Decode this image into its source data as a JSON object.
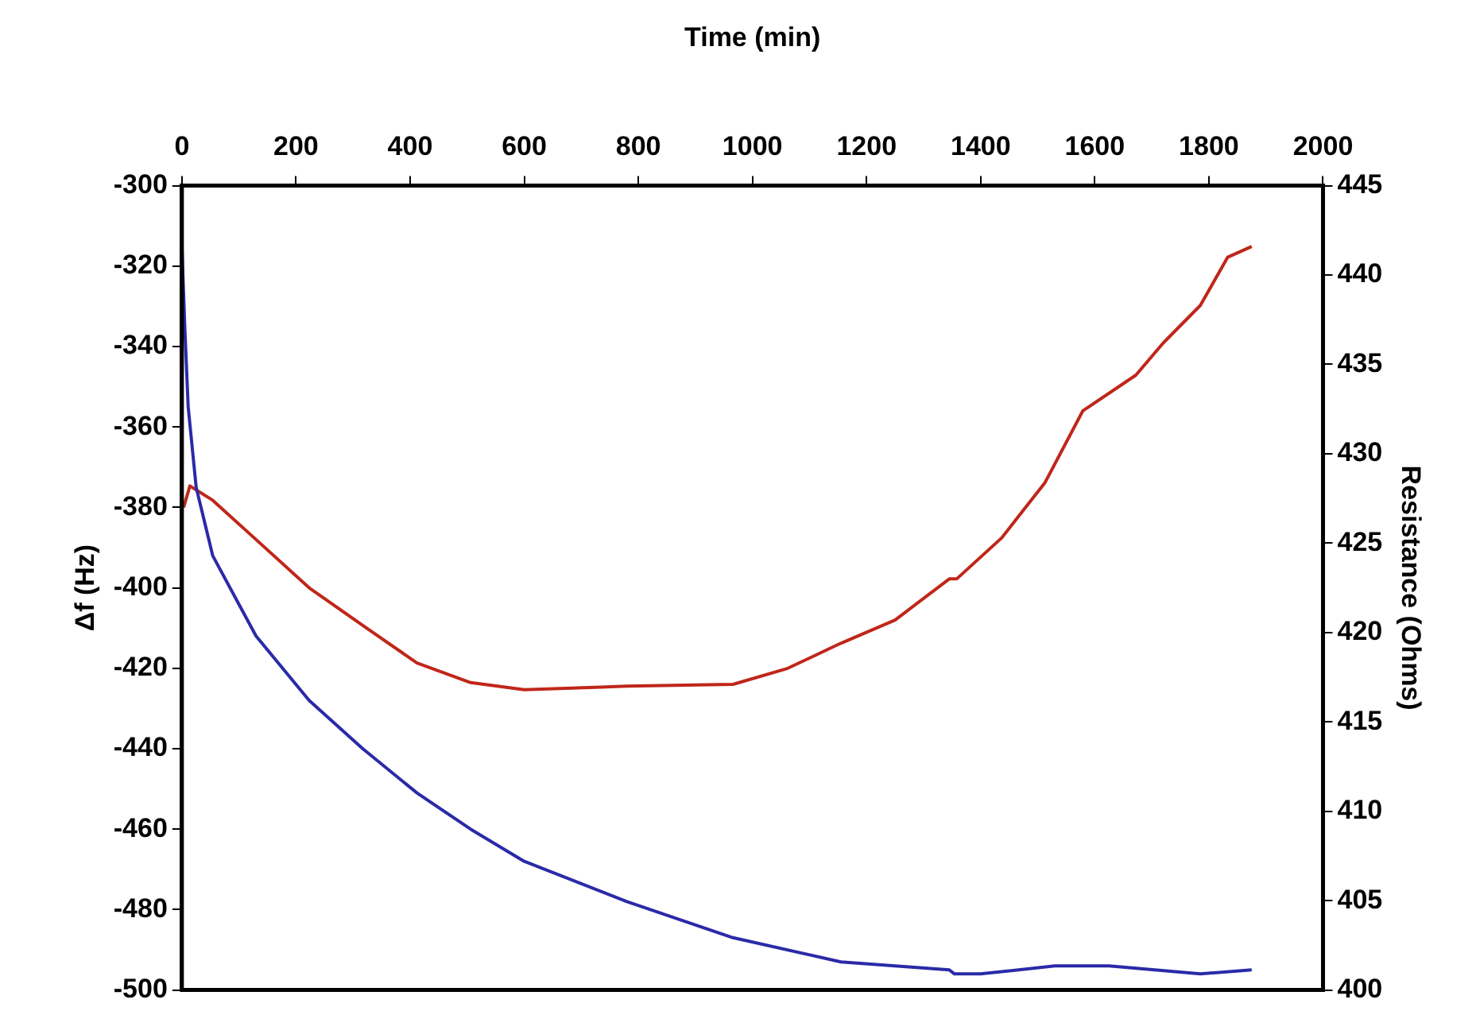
{
  "chart_data": {
    "type": "line",
    "xlabel": "Time (min)",
    "ylabel": "Δf (Hz)",
    "y2label": "Resistance (Ohms)",
    "xlim": [
      0,
      2000
    ],
    "xticks": [
      0,
      200,
      400,
      600,
      800,
      1000,
      1200,
      1400,
      1600,
      1800,
      2000
    ],
    "ylim": [
      -500,
      -300
    ],
    "yticks": [
      -500,
      -480,
      -460,
      -440,
      -420,
      -400,
      -380,
      -360,
      -340,
      -320,
      -300
    ],
    "y2lim": [
      400,
      445
    ],
    "y2ticks": [
      400,
      405,
      410,
      415,
      420,
      425,
      430,
      435,
      440,
      445
    ],
    "grid": false,
    "legend": false,
    "series": [
      {
        "color": "#2a2aa8",
        "x": [
          0,
          5,
          11,
          25,
          54,
          130,
          223,
          317,
          412,
          506,
          600,
          780,
          966,
          1155,
          1345,
          1354,
          1400,
          1530,
          1625,
          1785,
          1875
        ],
        "values": [
          -315,
          -335,
          -355,
          -375,
          -392,
          -412,
          -428,
          -440,
          -451,
          -460,
          -468,
          -478,
          -487,
          -493,
          -495,
          -496,
          -496,
          -494,
          -494,
          -496,
          -495
        ]
      },
      {
        "color": "#c0261a",
        "axis": "y2",
        "x": [
          3,
          14,
          54,
          130,
          223,
          317,
          412,
          506,
          600,
          780,
          966,
          1062,
          1155,
          1250,
          1345,
          1358,
          1437,
          1513,
          1579,
          1672,
          1720,
          1785,
          1833,
          1875
        ],
        "values": [
          427,
          428.2,
          427.4,
          425.2,
          422.5,
          420.4,
          418.3,
          417.2,
          416.8,
          417,
          417.1,
          418,
          419.4,
          420.7,
          423,
          423,
          425.3,
          428.4,
          432.4,
          434.4,
          436.2,
          438.3,
          441,
          441.6
        ]
      }
    ]
  }
}
